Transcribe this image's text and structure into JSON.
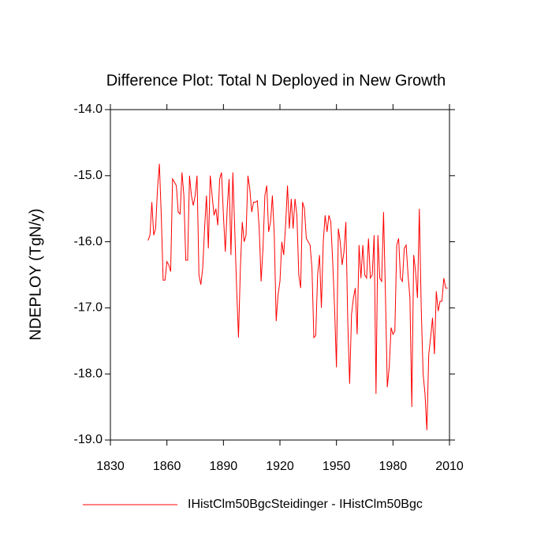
{
  "chart_data": {
    "type": "line",
    "title": "Difference Plot: Total N Deployed in New Growth",
    "y_label": "NDEPLOY  (TgN/y)",
    "x": [
      1850,
      1851,
      1852,
      1853,
      1854,
      1855,
      1856,
      1857,
      1858,
      1859,
      1860,
      1861,
      1862,
      1863,
      1864,
      1865,
      1866,
      1867,
      1868,
      1869,
      1870,
      1871,
      1872,
      1873,
      1874,
      1875,
      1876,
      1877,
      1878,
      1879,
      1880,
      1881,
      1882,
      1883,
      1884,
      1885,
      1886,
      1887,
      1888,
      1889,
      1890,
      1891,
      1892,
      1893,
      1894,
      1895,
      1896,
      1897,
      1898,
      1899,
      1900,
      1901,
      1902,
      1903,
      1904,
      1905,
      1906,
      1907,
      1908,
      1909,
      1910,
      1911,
      1912,
      1913,
      1914,
      1915,
      1916,
      1917,
      1918,
      1919,
      1920,
      1921,
      1922,
      1923,
      1924,
      1925,
      1926,
      1927,
      1928,
      1929,
      1930,
      1931,
      1932,
      1933,
      1934,
      1935,
      1936,
      1937,
      1938,
      1939,
      1940,
      1941,
      1942,
      1943,
      1944,
      1945,
      1946,
      1947,
      1948,
      1949,
      1950,
      1951,
      1952,
      1953,
      1954,
      1955,
      1956,
      1957,
      1958,
      1959,
      1960,
      1961,
      1962,
      1963,
      1964,
      1965,
      1966,
      1967,
      1968,
      1969,
      1970,
      1971,
      1972,
      1973,
      1974,
      1975,
      1976,
      1977,
      1978,
      1979,
      1980,
      1981,
      1982,
      1983,
      1984,
      1985,
      1986,
      1987,
      1988,
      1989,
      1990,
      1991,
      1992,
      1993,
      1994,
      1995,
      1996,
      1997,
      1998,
      1999,
      2000,
      2001,
      2002,
      2003,
      2004,
      2005,
      2006,
      2007,
      2008,
      2009
    ],
    "series": [
      {
        "name": "IHistClm50BgcSteidinger - IHistClm50Bgc",
        "color": "#ff0000",
        "values": [
          -15.98,
          -15.9,
          -15.4,
          -15.9,
          -15.8,
          -15.2,
          -14.82,
          -15.6,
          -16.58,
          -16.58,
          -16.3,
          -16.35,
          -16.45,
          -15.05,
          -15.1,
          -15.15,
          -15.55,
          -15.58,
          -14.95,
          -15.3,
          -16.28,
          -16.28,
          -15.0,
          -15.3,
          -15.45,
          -15.3,
          -15.0,
          -16.5,
          -16.65,
          -16.4,
          -15.8,
          -15.3,
          -16.1,
          -15.0,
          -15.3,
          -15.6,
          -15.5,
          -15.75,
          -15.05,
          -14.95,
          -15.6,
          -16.15,
          -15.5,
          -15.05,
          -16.2,
          -14.95,
          -15.8,
          -16.7,
          -17.45,
          -16.4,
          -15.7,
          -16.0,
          -15.9,
          -15.0,
          -15.2,
          -15.55,
          -15.4,
          -15.4,
          -15.38,
          -15.8,
          -16.6,
          -16.1,
          -15.3,
          -15.15,
          -15.85,
          -15.7,
          -15.3,
          -15.9,
          -17.2,
          -16.8,
          -16.6,
          -16.0,
          -16.2,
          -15.75,
          -15.15,
          -15.8,
          -15.35,
          -15.8,
          -15.35,
          -15.6,
          -16.5,
          -16.7,
          -15.4,
          -15.5,
          -15.95,
          -16.0,
          -16.05,
          -16.4,
          -17.45,
          -17.42,
          -16.5,
          -16.2,
          -17.0,
          -16.0,
          -15.6,
          -15.85,
          -15.6,
          -15.7,
          -16.3,
          -17.0,
          -17.9,
          -15.8,
          -16.0,
          -16.35,
          -16.15,
          -15.7,
          -17.2,
          -18.15,
          -17.1,
          -16.85,
          -16.7,
          -17.4,
          -16.05,
          -16.55,
          -16.05,
          -16.5,
          -16.55,
          -15.95,
          -16.55,
          -16.5,
          -15.9,
          -18.3,
          -15.9,
          -16.55,
          -16.6,
          -15.55,
          -16.8,
          -18.2,
          -17.9,
          -17.3,
          -17.4,
          -17.35,
          -16.05,
          -15.95,
          -16.55,
          -16.6,
          -16.1,
          -16.05,
          -16.5,
          -16.85,
          -18.5,
          -16.2,
          -16.45,
          -16.85,
          -15.5,
          -17.0,
          -18.0,
          -18.3,
          -18.85,
          -17.7,
          -17.45,
          -17.15,
          -17.7,
          -16.75,
          -17.05,
          -16.9,
          -16.9,
          -16.55,
          -16.7,
          -16.7
        ]
      }
    ],
    "xlim": [
      1830,
      2010
    ],
    "xticks": [
      1830,
      1860,
      1890,
      1920,
      1950,
      1980,
      2010
    ],
    "ylim": [
      -19,
      -14
    ],
    "yticks": [
      {
        "value": -19,
        "label": "-19.0"
      },
      {
        "value": -18,
        "label": "-18.0"
      },
      {
        "value": -17,
        "label": "-17.0"
      },
      {
        "value": -16,
        "label": "-16.0"
      },
      {
        "value": -15,
        "label": "-15.0"
      },
      {
        "value": -14,
        "label": "-14.0"
      }
    ],
    "grid": false,
    "legend": "bottom"
  }
}
